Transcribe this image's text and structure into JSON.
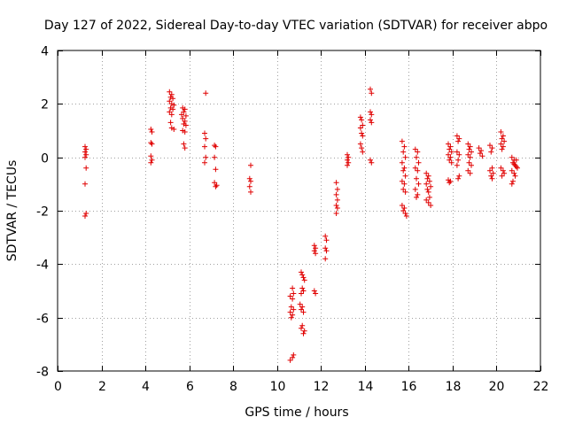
{
  "chart_data": {
    "type": "scatter",
    "title": "Day 127 of 2022, Sidereal Day-to-day VTEC variation (SDTVAR) for receiver abpo",
    "xlabel": "GPS time / hours",
    "ylabel": "SDTVAR / TECUs",
    "xlim": [
      0,
      22
    ],
    "ylim": [
      -8,
      4
    ],
    "xticks": [
      0,
      2,
      4,
      6,
      8,
      10,
      12,
      14,
      16,
      18,
      20,
      22
    ],
    "yticks": [
      -8,
      -6,
      -4,
      -2,
      0,
      2,
      4
    ],
    "grid": true,
    "marker": "+",
    "color": "#e00000",
    "series": [
      {
        "name": "SDTVAR",
        "points": [
          [
            1.25,
            0.4
          ],
          [
            1.3,
            0.3
          ],
          [
            1.25,
            0.2
          ],
          [
            1.3,
            0.1
          ],
          [
            1.25,
            0.0
          ],
          [
            1.3,
            -0.4
          ],
          [
            1.25,
            -1.0
          ],
          [
            1.3,
            -2.1
          ],
          [
            1.25,
            -2.2
          ],
          [
            4.25,
            1.05
          ],
          [
            4.3,
            0.95
          ],
          [
            4.25,
            0.55
          ],
          [
            4.3,
            0.5
          ],
          [
            4.25,
            0.05
          ],
          [
            4.3,
            -0.1
          ],
          [
            4.25,
            -0.2
          ],
          [
            5.1,
            2.45
          ],
          [
            5.2,
            2.35
          ],
          [
            5.15,
            2.25
          ],
          [
            5.25,
            2.2
          ],
          [
            5.1,
            2.1
          ],
          [
            5.2,
            2.0
          ],
          [
            5.3,
            1.95
          ],
          [
            5.15,
            1.85
          ],
          [
            5.25,
            1.8
          ],
          [
            5.1,
            1.7
          ],
          [
            5.2,
            1.6
          ],
          [
            5.15,
            1.3
          ],
          [
            5.2,
            1.1
          ],
          [
            5.3,
            1.05
          ],
          [
            5.7,
            1.85
          ],
          [
            5.8,
            1.8
          ],
          [
            5.75,
            1.7
          ],
          [
            5.65,
            1.6
          ],
          [
            5.85,
            1.55
          ],
          [
            5.7,
            1.45
          ],
          [
            5.8,
            1.35
          ],
          [
            5.75,
            1.25
          ],
          [
            5.85,
            1.2
          ],
          [
            5.7,
            1.0
          ],
          [
            5.8,
            0.95
          ],
          [
            5.75,
            0.5
          ],
          [
            5.8,
            0.35
          ],
          [
            6.75,
            2.4
          ],
          [
            6.7,
            0.9
          ],
          [
            6.75,
            0.7
          ],
          [
            6.7,
            0.4
          ],
          [
            6.75,
            0.0
          ],
          [
            6.7,
            -0.2
          ],
          [
            7.15,
            0.45
          ],
          [
            7.2,
            0.4
          ],
          [
            7.15,
            0.0
          ],
          [
            7.2,
            -0.45
          ],
          [
            7.15,
            -0.95
          ],
          [
            7.25,
            -1.05
          ],
          [
            7.2,
            -1.1
          ],
          [
            8.8,
            -0.3
          ],
          [
            8.75,
            -0.8
          ],
          [
            8.8,
            -0.9
          ],
          [
            8.75,
            -1.1
          ],
          [
            8.8,
            -1.3
          ],
          [
            10.6,
            -7.6
          ],
          [
            10.7,
            -7.5
          ],
          [
            10.75,
            -7.4
          ],
          [
            10.65,
            -6.0
          ],
          [
            10.7,
            -5.9
          ],
          [
            10.6,
            -5.8
          ],
          [
            10.75,
            -5.7
          ],
          [
            10.65,
            -5.6
          ],
          [
            10.7,
            -5.3
          ],
          [
            10.6,
            -5.2
          ],
          [
            10.75,
            -5.1
          ],
          [
            10.7,
            -4.9
          ],
          [
            11.05,
            -5.5
          ],
          [
            11.15,
            -5.6
          ],
          [
            11.1,
            -5.7
          ],
          [
            11.2,
            -5.8
          ],
          [
            11.15,
            -6.3
          ],
          [
            11.1,
            -6.4
          ],
          [
            11.25,
            -6.5
          ],
          [
            11.2,
            -6.6
          ],
          [
            11.1,
            -4.3
          ],
          [
            11.15,
            -4.4
          ],
          [
            11.2,
            -4.5
          ],
          [
            11.25,
            -4.6
          ],
          [
            11.15,
            -4.9
          ],
          [
            11.2,
            -5.0
          ],
          [
            11.1,
            -5.1
          ],
          [
            11.7,
            -5.0
          ],
          [
            11.75,
            -5.1
          ],
          [
            11.7,
            -3.3
          ],
          [
            11.75,
            -3.4
          ],
          [
            11.7,
            -3.5
          ],
          [
            11.75,
            -3.6
          ],
          [
            12.2,
            -2.95
          ],
          [
            12.25,
            -3.1
          ],
          [
            12.2,
            -3.4
          ],
          [
            12.25,
            -3.5
          ],
          [
            12.2,
            -3.8
          ],
          [
            12.7,
            -0.95
          ],
          [
            12.75,
            -1.2
          ],
          [
            12.7,
            -1.4
          ],
          [
            12.75,
            -1.6
          ],
          [
            12.7,
            -1.8
          ],
          [
            12.75,
            -1.9
          ],
          [
            12.7,
            -2.1
          ],
          [
            13.2,
            0.1
          ],
          [
            13.25,
            0.0
          ],
          [
            13.2,
            -0.1
          ],
          [
            13.25,
            -0.2
          ],
          [
            13.2,
            -0.3
          ],
          [
            13.8,
            1.5
          ],
          [
            13.85,
            1.4
          ],
          [
            13.9,
            1.2
          ],
          [
            13.8,
            1.1
          ],
          [
            13.85,
            0.9
          ],
          [
            13.9,
            0.8
          ],
          [
            13.8,
            0.5
          ],
          [
            13.85,
            0.35
          ],
          [
            13.9,
            0.2
          ],
          [
            14.25,
            2.55
          ],
          [
            14.3,
            2.4
          ],
          [
            14.25,
            1.7
          ],
          [
            14.3,
            1.6
          ],
          [
            14.25,
            1.4
          ],
          [
            14.3,
            1.3
          ],
          [
            14.25,
            -0.1
          ],
          [
            14.3,
            -0.2
          ],
          [
            15.7,
            0.6
          ],
          [
            15.8,
            0.4
          ],
          [
            15.75,
            0.2
          ],
          [
            15.85,
            0.0
          ],
          [
            15.7,
            -0.2
          ],
          [
            15.8,
            -0.4
          ],
          [
            15.75,
            -0.5
          ],
          [
            15.85,
            -0.7
          ],
          [
            15.7,
            -0.9
          ],
          [
            15.8,
            -1.0
          ],
          [
            15.75,
            -1.2
          ],
          [
            15.85,
            -1.3
          ],
          [
            15.7,
            -1.8
          ],
          [
            15.8,
            -1.9
          ],
          [
            15.75,
            -2.0
          ],
          [
            15.85,
            -2.1
          ],
          [
            15.9,
            -2.2
          ],
          [
            16.3,
            0.3
          ],
          [
            16.4,
            0.2
          ],
          [
            16.35,
            0.0
          ],
          [
            16.45,
            -0.2
          ],
          [
            16.3,
            -0.4
          ],
          [
            16.4,
            -0.5
          ],
          [
            16.35,
            -0.8
          ],
          [
            16.45,
            -1.0
          ],
          [
            16.3,
            -1.2
          ],
          [
            16.4,
            -1.4
          ],
          [
            16.35,
            -1.5
          ],
          [
            16.8,
            -0.6
          ],
          [
            16.9,
            -0.7
          ],
          [
            16.85,
            -0.8
          ],
          [
            16.95,
            -0.9
          ],
          [
            16.8,
            -1.0
          ],
          [
            17.0,
            -1.1
          ],
          [
            16.85,
            -1.2
          ],
          [
            16.9,
            -1.3
          ],
          [
            16.95,
            -1.5
          ],
          [
            16.8,
            -1.6
          ],
          [
            16.9,
            -1.7
          ],
          [
            17.0,
            -1.8
          ],
          [
            17.8,
            0.5
          ],
          [
            17.9,
            0.4
          ],
          [
            17.85,
            0.3
          ],
          [
            17.95,
            0.2
          ],
          [
            17.8,
            0.1
          ],
          [
            17.9,
            0.0
          ],
          [
            17.85,
            -0.1
          ],
          [
            17.95,
            -0.2
          ],
          [
            17.8,
            -0.85
          ],
          [
            17.9,
            -0.9
          ],
          [
            17.85,
            -0.95
          ],
          [
            18.2,
            0.8
          ],
          [
            18.3,
            0.7
          ],
          [
            18.25,
            0.6
          ],
          [
            18.2,
            0.2
          ],
          [
            18.3,
            0.1
          ],
          [
            18.25,
            -0.1
          ],
          [
            18.2,
            -0.3
          ],
          [
            18.3,
            -0.7
          ],
          [
            18.25,
            -0.8
          ],
          [
            18.7,
            0.5
          ],
          [
            18.8,
            0.4
          ],
          [
            18.75,
            0.3
          ],
          [
            18.85,
            0.2
          ],
          [
            18.7,
            0.1
          ],
          [
            18.8,
            0.0
          ],
          [
            18.75,
            -0.2
          ],
          [
            18.85,
            -0.3
          ],
          [
            18.7,
            -0.5
          ],
          [
            18.8,
            -0.6
          ],
          [
            19.2,
            0.35
          ],
          [
            19.3,
            0.25
          ],
          [
            19.25,
            0.15
          ],
          [
            19.35,
            0.05
          ],
          [
            19.7,
            0.45
          ],
          [
            19.8,
            0.35
          ],
          [
            19.75,
            0.2
          ],
          [
            19.8,
            -0.4
          ],
          [
            19.7,
            -0.5
          ],
          [
            19.85,
            -0.6
          ],
          [
            19.75,
            -0.7
          ],
          [
            19.8,
            -0.8
          ],
          [
            20.2,
            0.95
          ],
          [
            20.3,
            0.8
          ],
          [
            20.25,
            0.7
          ],
          [
            20.35,
            0.6
          ],
          [
            20.2,
            0.5
          ],
          [
            20.3,
            0.4
          ],
          [
            20.25,
            0.3
          ],
          [
            20.2,
            -0.4
          ],
          [
            20.3,
            -0.5
          ],
          [
            20.35,
            -0.6
          ],
          [
            20.25,
            -0.7
          ],
          [
            20.7,
            0.0
          ],
          [
            20.8,
            -0.1
          ],
          [
            20.75,
            -0.2
          ],
          [
            20.85,
            -0.3
          ],
          [
            20.9,
            -0.35
          ],
          [
            20.7,
            -0.5
          ],
          [
            20.8,
            -0.6
          ],
          [
            20.85,
            -0.7
          ],
          [
            20.75,
            -0.9
          ],
          [
            20.7,
            -1.0
          ],
          [
            20.95,
            -0.4
          ],
          [
            20.9,
            -0.1
          ],
          [
            20.8,
            -0.25
          ]
        ]
      }
    ]
  }
}
